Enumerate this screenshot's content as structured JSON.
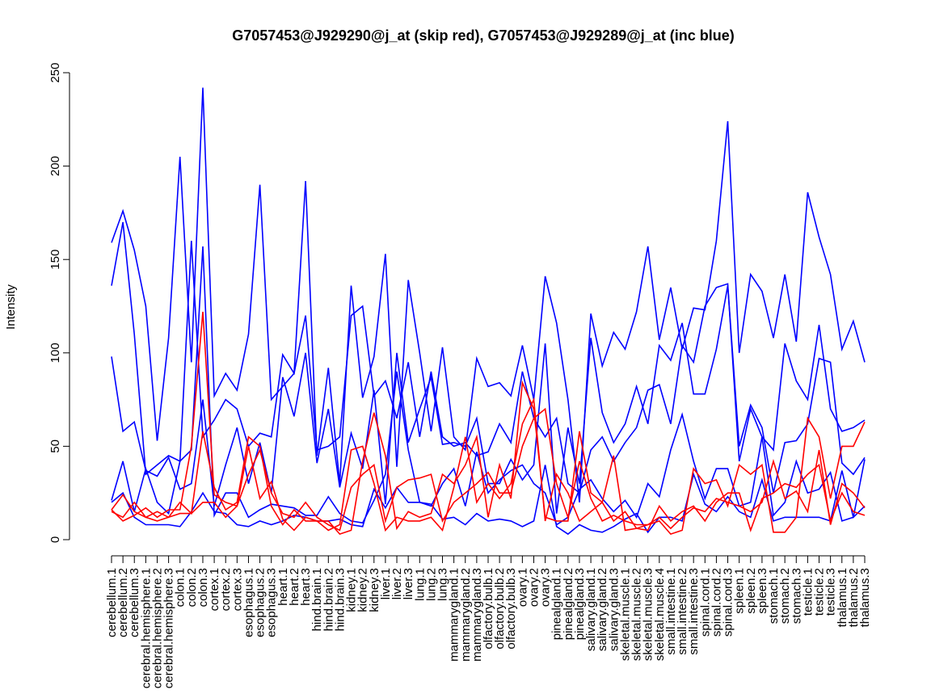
{
  "chart_data": {
    "type": "line",
    "title": "G7057453@J929290@j_at (skip red), G7057453@J929289@j_at (inc blue)",
    "xlabel": "",
    "ylabel": "Intensity",
    "ylim": [
      0,
      250
    ],
    "yticks": [
      0,
      50,
      100,
      150,
      200,
      250
    ],
    "grid": false,
    "colors": {
      "inc": "#0000ff",
      "skip": "#ff0000"
    },
    "categories": [
      "cerebellum.1",
      "cerebellum.2",
      "cerebellum.3",
      "cerebral.hemisphere.1",
      "cerebral.hemisphere.2",
      "cerebral.hemisphere.3",
      "colon.1",
      "colon.2",
      "colon.3",
      "cortex.1",
      "cortex.2",
      "cortex.3",
      "esophagus.1",
      "esophagus.2",
      "esophagus.3",
      "heart.1",
      "heart.2",
      "heart.3",
      "hind.brain.1",
      "hind.brain.2",
      "hind.brain.3",
      "kidney.1",
      "kidney.2",
      "kidney.3",
      "liver.1",
      "liver.2",
      "liver.3",
      "lung.1",
      "lung.2",
      "lung.3",
      "mammarygland.1",
      "mammarygland.2",
      "mammarygland.3",
      "olfactory.bulb.1",
      "olfactory.bulb.2",
      "olfactory.bulb.3",
      "ovary.1",
      "ovary.2",
      "ovary.3",
      "pinealgland.1",
      "pinealgland.2",
      "pinealgland.3",
      "salivary.gland.1",
      "salivary.gland.2",
      "salivary.gland.3",
      "skeletal.muscle.1",
      "skeletal.muscle.2",
      "skeletal.muscle.3",
      "skeletal.muscle.4",
      "small.intestine.1",
      "small.intestine.2",
      "small.intestine.3",
      "spinal.cord.1",
      "spinal.cord.2",
      "spinal.cord.3",
      "spleen.1",
      "spleen.2",
      "spleen.3",
      "stomach.1",
      "stomach.2",
      "stomach.3",
      "testicle.1",
      "testicle.2",
      "testicle.3",
      "thalamus.1",
      "thalamus.2",
      "thalamus.3"
    ],
    "series": [
      {
        "name": "inc-1",
        "group": "inc",
        "values": [
          159,
          176,
          155,
          125,
          53,
          108,
          205,
          95,
          242,
          77,
          89,
          80,
          110,
          190,
          75,
          82,
          89,
          192,
          45,
          92,
          30,
          136,
          76,
          98,
          153,
          39,
          139,
          100,
          58,
          103,
          55,
          48,
          97,
          82,
          84,
          77,
          104,
          75,
          141,
          116,
          75,
          20,
          121,
          93,
          111,
          102,
          122,
          157,
          107,
          135,
          102,
          124,
          123,
          160,
          224,
          100,
          142,
          133,
          108,
          142,
          106,
          186,
          162,
          142,
          102,
          117,
          95
        ]
      },
      {
        "name": "inc-2",
        "group": "inc",
        "values": [
          136,
          170,
          110,
          35,
          40,
          45,
          42,
          160,
          55,
          64,
          75,
          70,
          50,
          57,
          55,
          99,
          89,
          120,
          48,
          50,
          55,
          120,
          125,
          77,
          85,
          65,
          95,
          55,
          90,
          55,
          50,
          52,
          45,
          47,
          62,
          52,
          90,
          65,
          55,
          65,
          30,
          25,
          48,
          55,
          42,
          52,
          60,
          80,
          83,
          62,
          104,
          95,
          125,
          135,
          137,
          42,
          70,
          55,
          48,
          105,
          85,
          75,
          115,
          70,
          58,
          60,
          64
        ]
      },
      {
        "name": "inc-3",
        "group": "inc",
        "values": [
          98,
          58,
          63,
          37,
          34,
          44,
          27,
          30,
          75,
          18,
          40,
          60,
          30,
          52,
          25,
          87,
          66,
          100,
          41,
          70,
          28,
          57,
          38,
          80,
          19,
          100,
          52,
          70,
          87,
          51,
          52,
          50,
          65,
          30,
          30,
          43,
          32,
          40,
          105,
          14,
          60,
          30,
          108,
          68,
          52,
          62,
          82,
          62,
          104,
          96,
          116,
          78,
          78,
          102,
          136,
          50,
          72,
          60,
          25,
          52,
          53,
          62,
          97,
          95,
          41,
          35,
          44
        ]
      },
      {
        "name": "inc-4",
        "group": "inc",
        "values": [
          21,
          42,
          15,
          38,
          20,
          14,
          42,
          48,
          157,
          13,
          25,
          25,
          12,
          16,
          19,
          18,
          17,
          13,
          13,
          23,
          14,
          10,
          9,
          21,
          35,
          90,
          48,
          20,
          18,
          30,
          38,
          18,
          47,
          25,
          32,
          37,
          40,
          30,
          25,
          8,
          12,
          27,
          32,
          22,
          15,
          21,
          12,
          30,
          23,
          48,
          67,
          42,
          22,
          38,
          38,
          18,
          20,
          55,
          13,
          20,
          42,
          25,
          27,
          36,
          10,
          12,
          43
        ]
      },
      {
        "name": "inc-5",
        "group": "inc",
        "values": [
          20,
          25,
          12,
          8,
          8,
          8,
          7,
          15,
          25,
          15,
          14,
          8,
          7,
          10,
          8,
          10,
          13,
          12,
          10,
          10,
          11,
          8,
          7,
          27,
          17,
          28,
          20,
          20,
          19,
          11,
          12,
          8,
          14,
          10,
          11,
          10,
          7,
          10,
          40,
          7,
          3,
          8,
          5,
          4,
          7,
          11,
          14,
          4,
          12,
          12,
          10,
          35,
          19,
          15,
          23,
          15,
          12,
          32,
          10,
          12,
          12,
          12,
          12,
          10,
          37,
          12,
          18
        ]
      },
      {
        "name": "skip-1",
        "group": "skip",
        "values": [
          16,
          10,
          13,
          17,
          12,
          16,
          16,
          50,
          122,
          24,
          20,
          18,
          50,
          22,
          31,
          11,
          5,
          12,
          10,
          10,
          3,
          5,
          42,
          68,
          45,
          6,
          15,
          12,
          14,
          35,
          30,
          40,
          55,
          12,
          40,
          22,
          84,
          70,
          12,
          10,
          10,
          58,
          25,
          20,
          10,
          15,
          6,
          8,
          10,
          3,
          5,
          38,
          30,
          32,
          18,
          40,
          35,
          40,
          4,
          4,
          12,
          65,
          55,
          22,
          50,
          50,
          63
        ]
      },
      {
        "name": "skip-2",
        "group": "skip",
        "values": [
          16,
          24,
          15,
          12,
          15,
          12,
          20,
          14,
          58,
          28,
          16,
          20,
          55,
          50,
          18,
          8,
          16,
          10,
          10,
          5,
          8,
          48,
          50,
          30,
          5,
          12,
          10,
          10,
          12,
          5,
          28,
          55,
          20,
          30,
          22,
          30,
          62,
          75,
          10,
          35,
          25,
          10,
          15,
          20,
          45,
          5,
          6,
          5,
          18,
          10,
          15,
          18,
          10,
          20,
          25,
          25,
          5,
          22,
          25,
          30,
          28,
          35,
          40,
          10,
          25,
          15,
          13
        ]
      },
      {
        "name": "skip-3",
        "group": "skip",
        "values": [
          15,
          12,
          20,
          12,
          10,
          12,
          14,
          14,
          20,
          20,
          12,
          18,
          35,
          48,
          25,
          14,
          12,
          20,
          12,
          8,
          5,
          28,
          35,
          40,
          10,
          28,
          32,
          33,
          35,
          10,
          20,
          25,
          30,
          36,
          25,
          25,
          50,
          65,
          70,
          30,
          12,
          42,
          22,
          10,
          13,
          10,
          8,
          8,
          12,
          6,
          12,
          17,
          15,
          22,
          20,
          18,
          15,
          20,
          42,
          22,
          26,
          15,
          48,
          8,
          30,
          25,
          17
        ]
      }
    ]
  }
}
